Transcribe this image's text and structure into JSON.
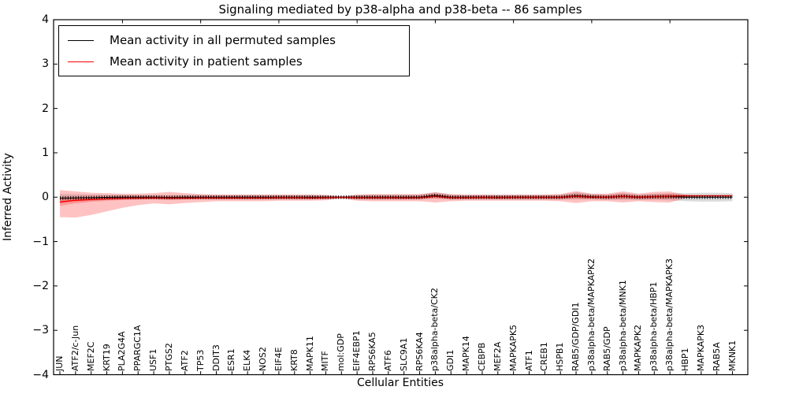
{
  "figure": {
    "title": "Signaling mediated by p38-alpha and p38-beta -- 86 samples"
  },
  "legend": {
    "items": [
      {
        "label": "Mean activity in all permuted samples",
        "color": "#000000"
      },
      {
        "label": "Mean activity in patient samples",
        "color": "#ff0000"
      }
    ]
  },
  "chart_data": {
    "type": "line",
    "title": "Signaling mediated by p38-alpha and p38-beta -- 86 samples",
    "xlabel": "Cellular Entities",
    "ylabel": "Inferred Activity",
    "ylim": [
      -4,
      4
    ],
    "yticks": [
      4,
      3,
      2,
      1,
      0,
      -1,
      -2,
      -3,
      -4
    ],
    "grid": false,
    "legend_position": "upper left",
    "categories": [
      "JUN",
      "ATF2/c-Jun",
      "MEF2C",
      "KRT19",
      "PLA2G4A",
      "PPARGC1A",
      "USF1",
      "PTGS2",
      "ATF2",
      "TP53",
      "DDIT3",
      "ESR1",
      "ELK4",
      "NOS2",
      "EIF4E",
      "KRT8",
      "MAPK11",
      "MITF",
      "mol:GDP",
      "EIF4EBP1",
      "RPS6KA5",
      "ATF6",
      "SLC9A1",
      "RPS6KA4",
      "p38alpha-beta/CK2",
      "GDI1",
      "MAPK14",
      "CEBPB",
      "MEF2A",
      "MAPKAPK5",
      "ATF1",
      "CREB1",
      "HSPB1",
      "RAB5/GDP/GDI1",
      "p38alpha-beta/MAPKAPK2",
      "RAB5/GDP",
      "p38alpha-beta/MNK1",
      "MAPKAPK2",
      "p38alpha-beta/HBP1",
      "p38alpha-beta/MAPKAPK3",
      "HBP1",
      "MAPKAPK3",
      "RAB5A",
      "MKNK1"
    ],
    "series": [
      {
        "name": "Mean activity in all permuted samples",
        "color": "#000000",
        "values": [
          -0.02,
          -0.015,
          -0.01,
          -0.005,
          0,
          0,
          0,
          -0.005,
          0,
          0,
          0,
          0,
          0,
          0,
          0,
          0,
          0,
          0,
          0,
          0,
          0,
          0,
          0,
          0,
          0.04,
          0,
          0,
          0,
          0,
          0,
          0,
          0,
          0,
          0.03,
          0.01,
          0,
          0.02,
          0,
          0.01,
          0.01,
          0,
          0,
          0,
          0
        ]
      },
      {
        "name": "Mean activity in patient samples",
        "color": "#ff0000",
        "values": [
          -0.11,
          -0.07,
          -0.05,
          -0.035,
          -0.025,
          -0.02,
          -0.015,
          -0.02,
          -0.02,
          -0.015,
          -0.015,
          -0.015,
          -0.015,
          -0.015,
          -0.01,
          -0.01,
          -0.015,
          -0.01,
          -0.005,
          -0.01,
          -0.01,
          -0.01,
          -0.015,
          -0.01,
          0.02,
          -0.01,
          -0.01,
          -0.005,
          -0.01,
          -0.005,
          -0.005,
          -0.005,
          -0.005,
          0.02,
          0,
          0,
          0.02,
          0,
          0.01,
          0.02,
          0.03,
          0.03,
          0.03,
          0.03
        ]
      }
    ],
    "bands": [
      {
        "name": "permuted-sample-range",
        "color": "rgba(0,0,0,0.14)",
        "upper": [
          0.07,
          0.065,
          0.06,
          0.055,
          0.055,
          0.05,
          0.05,
          0.05,
          0.05,
          0.05,
          0.05,
          0.05,
          0.05,
          0.05,
          0.05,
          0.05,
          0.05,
          0.045,
          0.015,
          0.05,
          0.055,
          0.055,
          0.055,
          0.055,
          0.11,
          0.055,
          0.05,
          0.05,
          0.05,
          0.05,
          0.05,
          0.05,
          0.055,
          0.11,
          0.07,
          0.06,
          0.1,
          0.06,
          0.08,
          0.09,
          0.09,
          0.1,
          0.1,
          0.09
        ],
        "lower": [
          -0.11,
          -0.095,
          -0.08,
          -0.065,
          -0.055,
          -0.05,
          -0.05,
          -0.06,
          -0.05,
          -0.05,
          -0.05,
          -0.05,
          -0.05,
          -0.05,
          -0.05,
          -0.05,
          -0.05,
          -0.045,
          -0.015,
          -0.05,
          -0.055,
          -0.055,
          -0.055,
          -0.055,
          -0.03,
          -0.055,
          -0.05,
          -0.05,
          -0.05,
          -0.05,
          -0.05,
          -0.05,
          -0.055,
          -0.05,
          -0.05,
          -0.06,
          -0.06,
          -0.06,
          -0.06,
          -0.07,
          -0.09,
          -0.1,
          -0.1,
          -0.09
        ]
      },
      {
        "name": "patient-sample-range-outer",
        "color": "rgba(255,0,0,0.24)",
        "upper": [
          0.16,
          0.13,
          0.1,
          0.09,
          0.08,
          0.08,
          0.09,
          0.12,
          0.09,
          0.07,
          0.06,
          0.06,
          0.06,
          0.06,
          0.06,
          0.06,
          0.06,
          0.05,
          0.015,
          0.06,
          0.07,
          0.07,
          0.07,
          0.07,
          0.11,
          0.07,
          0.06,
          0.06,
          0.06,
          0.06,
          0.06,
          0.06,
          0.07,
          0.14,
          0.08,
          0.08,
          0.13,
          0.08,
          0.12,
          0.13,
          0.05,
          0.03,
          0.03,
          0.03
        ],
        "lower": [
          -0.45,
          -0.46,
          -0.4,
          -0.32,
          -0.24,
          -0.18,
          -0.14,
          -0.16,
          -0.13,
          -0.11,
          -0.09,
          -0.09,
          -0.09,
          -0.09,
          -0.08,
          -0.08,
          -0.08,
          -0.07,
          -0.025,
          -0.08,
          -0.09,
          -0.09,
          -0.09,
          -0.09,
          -0.12,
          -0.09,
          -0.08,
          -0.08,
          -0.08,
          -0.08,
          -0.08,
          -0.08,
          -0.09,
          -0.13,
          -0.09,
          -0.09,
          -0.12,
          -0.09,
          -0.11,
          -0.12,
          -0.02,
          0.03,
          0.03,
          0.03
        ]
      },
      {
        "name": "patient-sample-range-inner",
        "color": "rgba(255,0,0,0.22)",
        "upper": [
          -0.03,
          0,
          0.005,
          0.01,
          0.015,
          0.015,
          0.015,
          0.015,
          0.01,
          0.015,
          0.015,
          0.015,
          0.015,
          0.015,
          0.02,
          0.02,
          0.015,
          0.015,
          0.003,
          0.02,
          0.02,
          0.02,
          0.015,
          0.02,
          0.065,
          0.02,
          0.02,
          0.025,
          0.02,
          0.025,
          0.025,
          0.025,
          0.025,
          0.07,
          0.035,
          0.035,
          0.07,
          0.035,
          0.055,
          0.07,
          0.05,
          0.03,
          0.03,
          0.03
        ],
        "lower": [
          -0.19,
          -0.14,
          -0.105,
          -0.08,
          -0.065,
          -0.055,
          -0.045,
          -0.055,
          -0.05,
          -0.045,
          -0.045,
          -0.045,
          -0.045,
          -0.045,
          -0.04,
          -0.04,
          -0.045,
          -0.035,
          -0.013,
          -0.04,
          -0.04,
          -0.04,
          -0.045,
          -0.04,
          -0.025,
          -0.04,
          -0.04,
          -0.035,
          -0.04,
          -0.035,
          -0.035,
          -0.035,
          -0.035,
          -0.03,
          -0.035,
          -0.035,
          -0.03,
          -0.035,
          -0.035,
          -0.03,
          0.01,
          0.03,
          0.03,
          0.03
        ]
      }
    ]
  }
}
